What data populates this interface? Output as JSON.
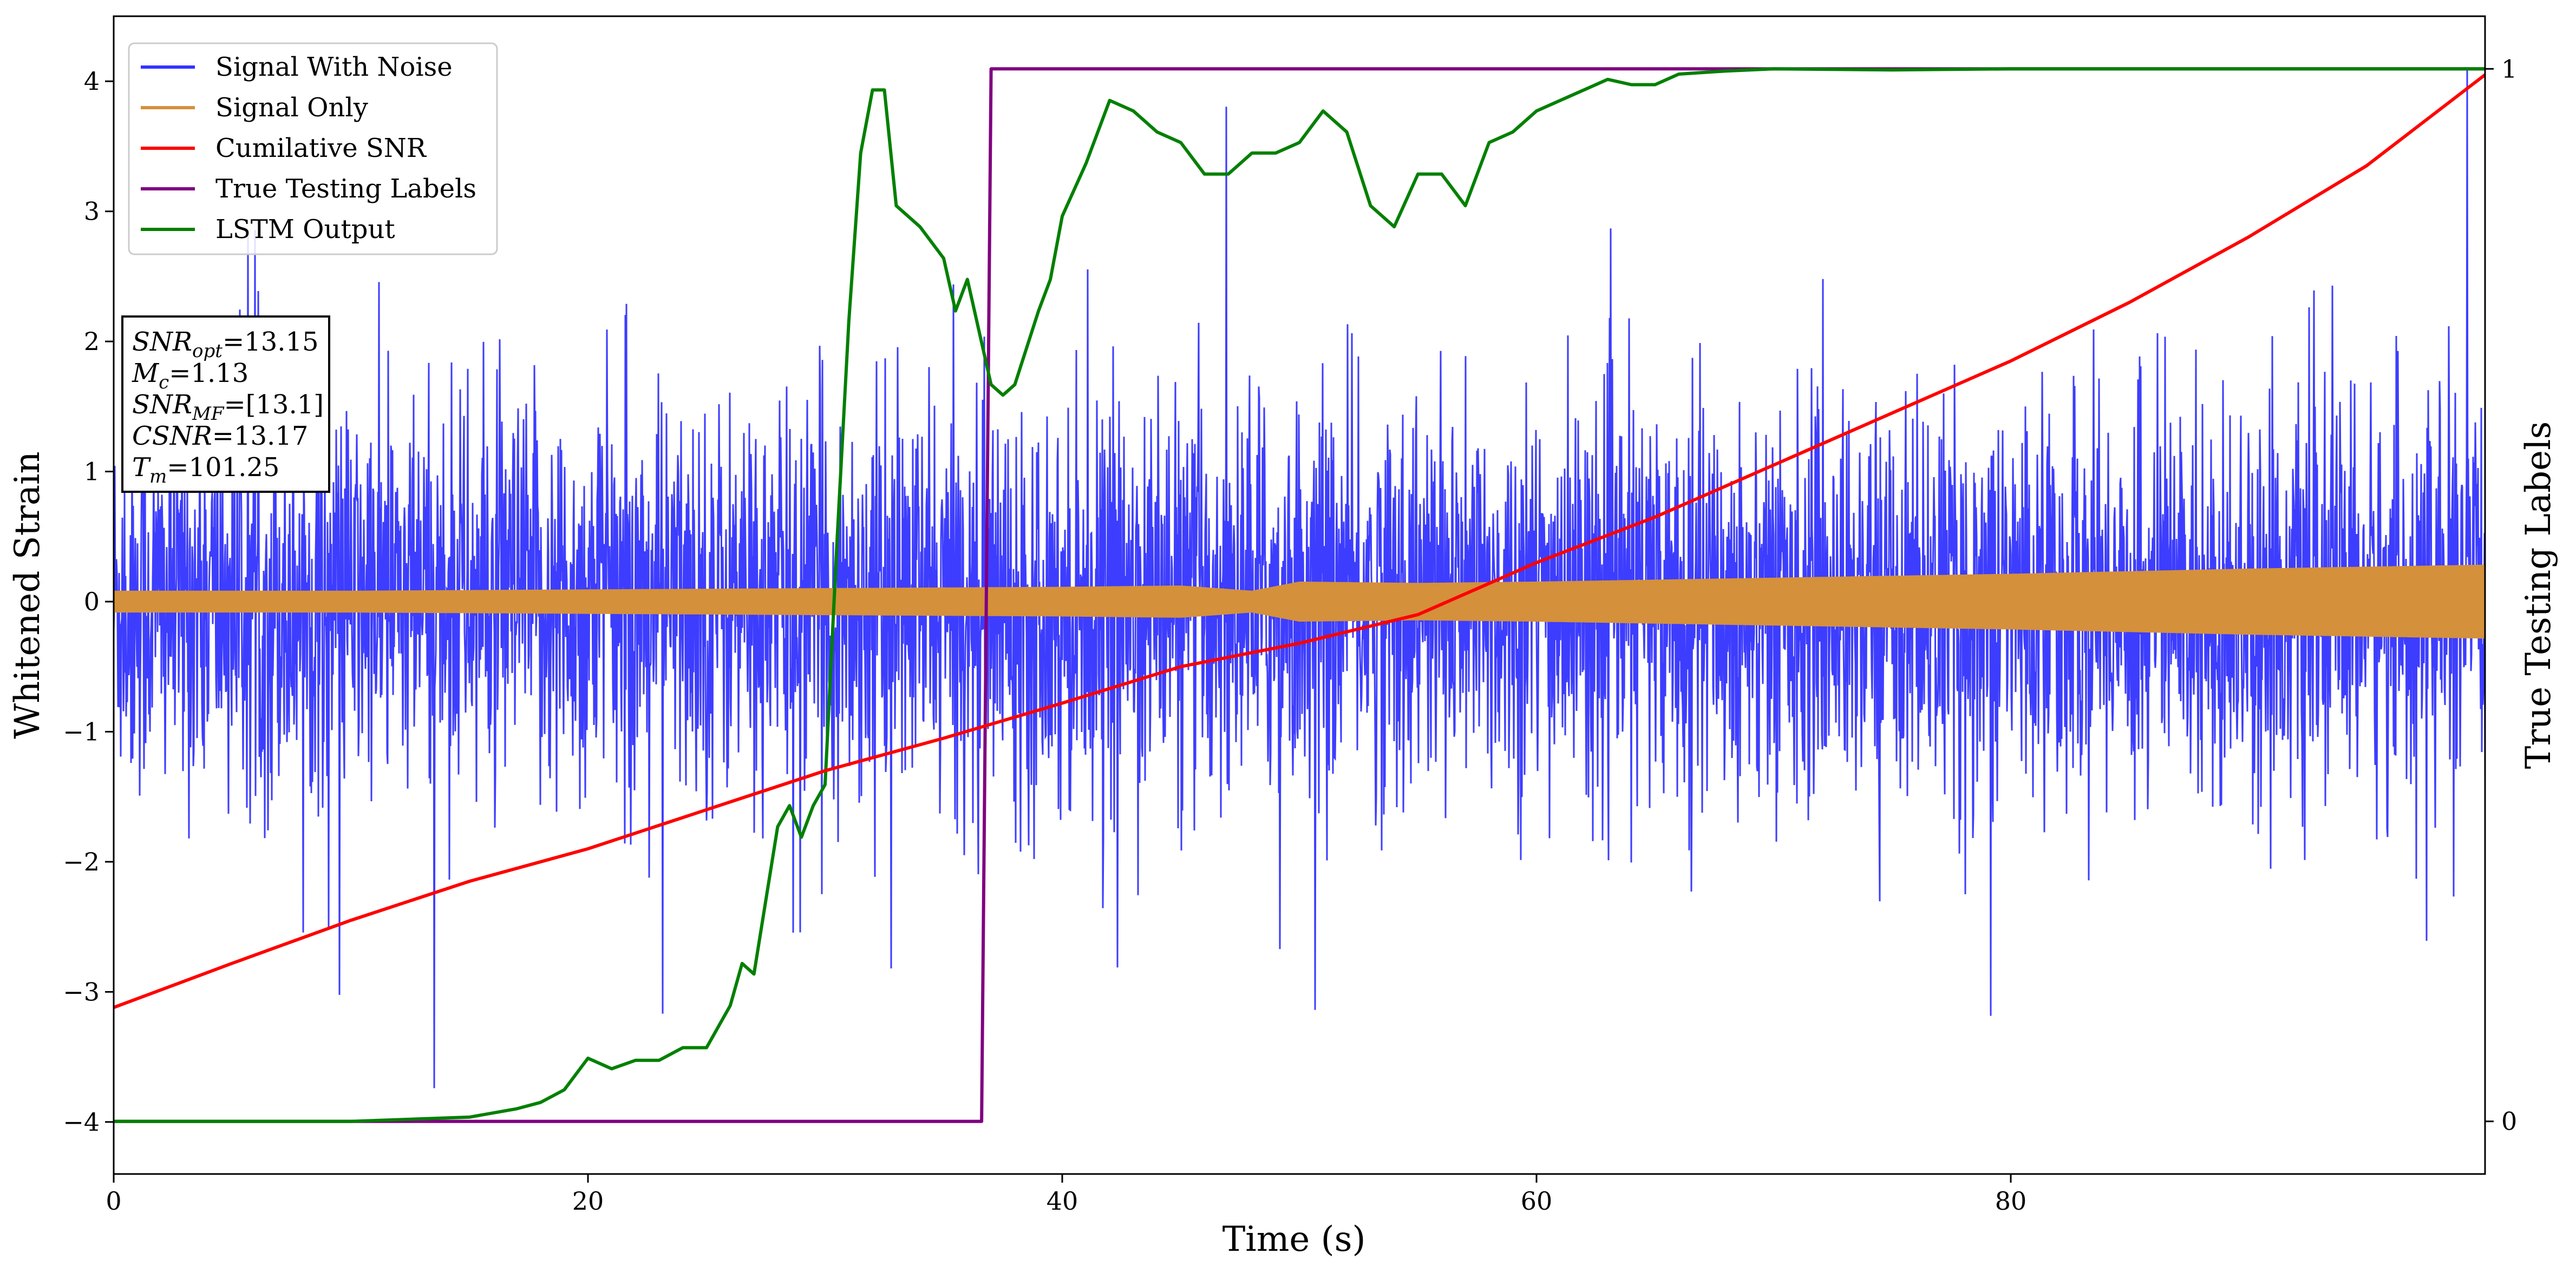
{
  "chart_data": {
    "type": "line",
    "title": "",
    "xlabel": "Time (s)",
    "ylabel": "Whitened Strain",
    "y2label": "True Testing Labels",
    "xlim": [
      0,
      100
    ],
    "ylim": [
      -4.4,
      4.5
    ],
    "y2lim": [
      -0.05,
      1.05
    ],
    "xticks": [
      0,
      20,
      40,
      60,
      80
    ],
    "yticks": [
      -4,
      -3,
      -2,
      -1,
      0,
      1,
      2,
      3,
      4
    ],
    "y2ticks": [
      0,
      1
    ],
    "xtick_labels": [
      "0",
      "20",
      "40",
      "60",
      "80"
    ],
    "ytick_labels": [
      "−4",
      "−3",
      "−2",
      "−1",
      "0",
      "1",
      "2",
      "3",
      "4"
    ],
    "y2tick_labels": [
      "0",
      "1"
    ],
    "legend_position": "top-left",
    "series": [
      {
        "name": "Signal With Noise",
        "color": "#3333ff",
        "axis": "left",
        "kind": "noise",
        "typical_range": [
          -1.6,
          1.6
        ],
        "extremes": [
          -3.8,
          4.1
        ]
      },
      {
        "name": "Signal Only",
        "color": "#d4903a",
        "axis": "left",
        "kind": "envelope",
        "envelope_x": [
          0,
          10,
          20,
          30,
          40,
          45,
          48,
          50,
          55,
          60,
          70,
          80,
          90,
          100
        ],
        "envelope_amp": [
          0.08,
          0.08,
          0.09,
          0.1,
          0.11,
          0.12,
          0.08,
          0.15,
          0.14,
          0.15,
          0.18,
          0.21,
          0.25,
          0.28
        ]
      },
      {
        "name": "Cumilative SNR",
        "color": "#ff0000",
        "axis": "left",
        "x": [
          0,
          5,
          10,
          15,
          20,
          25,
          30,
          35,
          40,
          45,
          50,
          55,
          60,
          65,
          70,
          75,
          80,
          85,
          90,
          95,
          100
        ],
        "y": [
          -3.12,
          -2.78,
          -2.45,
          -2.15,
          -1.9,
          -1.6,
          -1.3,
          -1.05,
          -0.78,
          -0.5,
          -0.32,
          -0.1,
          0.3,
          0.65,
          1.05,
          1.45,
          1.85,
          2.3,
          2.8,
          3.35,
          4.05
        ]
      },
      {
        "name": "True Testing Labels",
        "color": "#800080",
        "axis": "right",
        "x": [
          0,
          36.6,
          37.0,
          100
        ],
        "y": [
          0,
          0,
          1,
          1
        ]
      },
      {
        "name": "LSTM Output",
        "color": "#008000",
        "axis": "right",
        "x": [
          0,
          10,
          15,
          17,
          18,
          19,
          20,
          21,
          22,
          23,
          24,
          25,
          26,
          26.5,
          27,
          28,
          28.5,
          29,
          29.5,
          30,
          30.5,
          31,
          31.5,
          32,
          32.5,
          33,
          34,
          35,
          35.5,
          36,
          37,
          37.5,
          38,
          39,
          39.5,
          40,
          41,
          42,
          43,
          44,
          45,
          46,
          47,
          48,
          49,
          50,
          51,
          52,
          53,
          54,
          55,
          56,
          57,
          58,
          59,
          60,
          61,
          62,
          63,
          64,
          65,
          66,
          68,
          70,
          75,
          80,
          85,
          90,
          95,
          100
        ],
        "y": [
          0,
          0,
          0.004,
          0.012,
          0.018,
          0.03,
          0.06,
          0.05,
          0.058,
          0.058,
          0.07,
          0.07,
          0.11,
          0.15,
          0.14,
          0.28,
          0.3,
          0.27,
          0.3,
          0.32,
          0.55,
          0.76,
          0.92,
          0.98,
          0.98,
          0.87,
          0.85,
          0.82,
          0.77,
          0.8,
          0.7,
          0.69,
          0.7,
          0.77,
          0.8,
          0.86,
          0.91,
          0.97,
          0.96,
          0.94,
          0.93,
          0.9,
          0.9,
          0.92,
          0.92,
          0.93,
          0.96,
          0.94,
          0.87,
          0.85,
          0.9,
          0.9,
          0.87,
          0.93,
          0.94,
          0.96,
          0.97,
          0.98,
          0.99,
          0.985,
          0.985,
          0.995,
          0.998,
          1.0,
          0.999,
          1.0,
          1.0,
          1.0,
          1.0,
          1.0
        ]
      }
    ]
  },
  "annotation": {
    "lines": [
      {
        "var": "SNR",
        "sub": "opt",
        "value": "=13.15"
      },
      {
        "var": "M",
        "sub": "c",
        "value": "=1.13"
      },
      {
        "var": "SNR",
        "sub": "MF",
        "value": "=[13.1]"
      },
      {
        "var": "CSNR",
        "sub": "",
        "value": "=13.17"
      },
      {
        "var": "T",
        "sub": "m",
        "value": "=101.25"
      }
    ]
  }
}
